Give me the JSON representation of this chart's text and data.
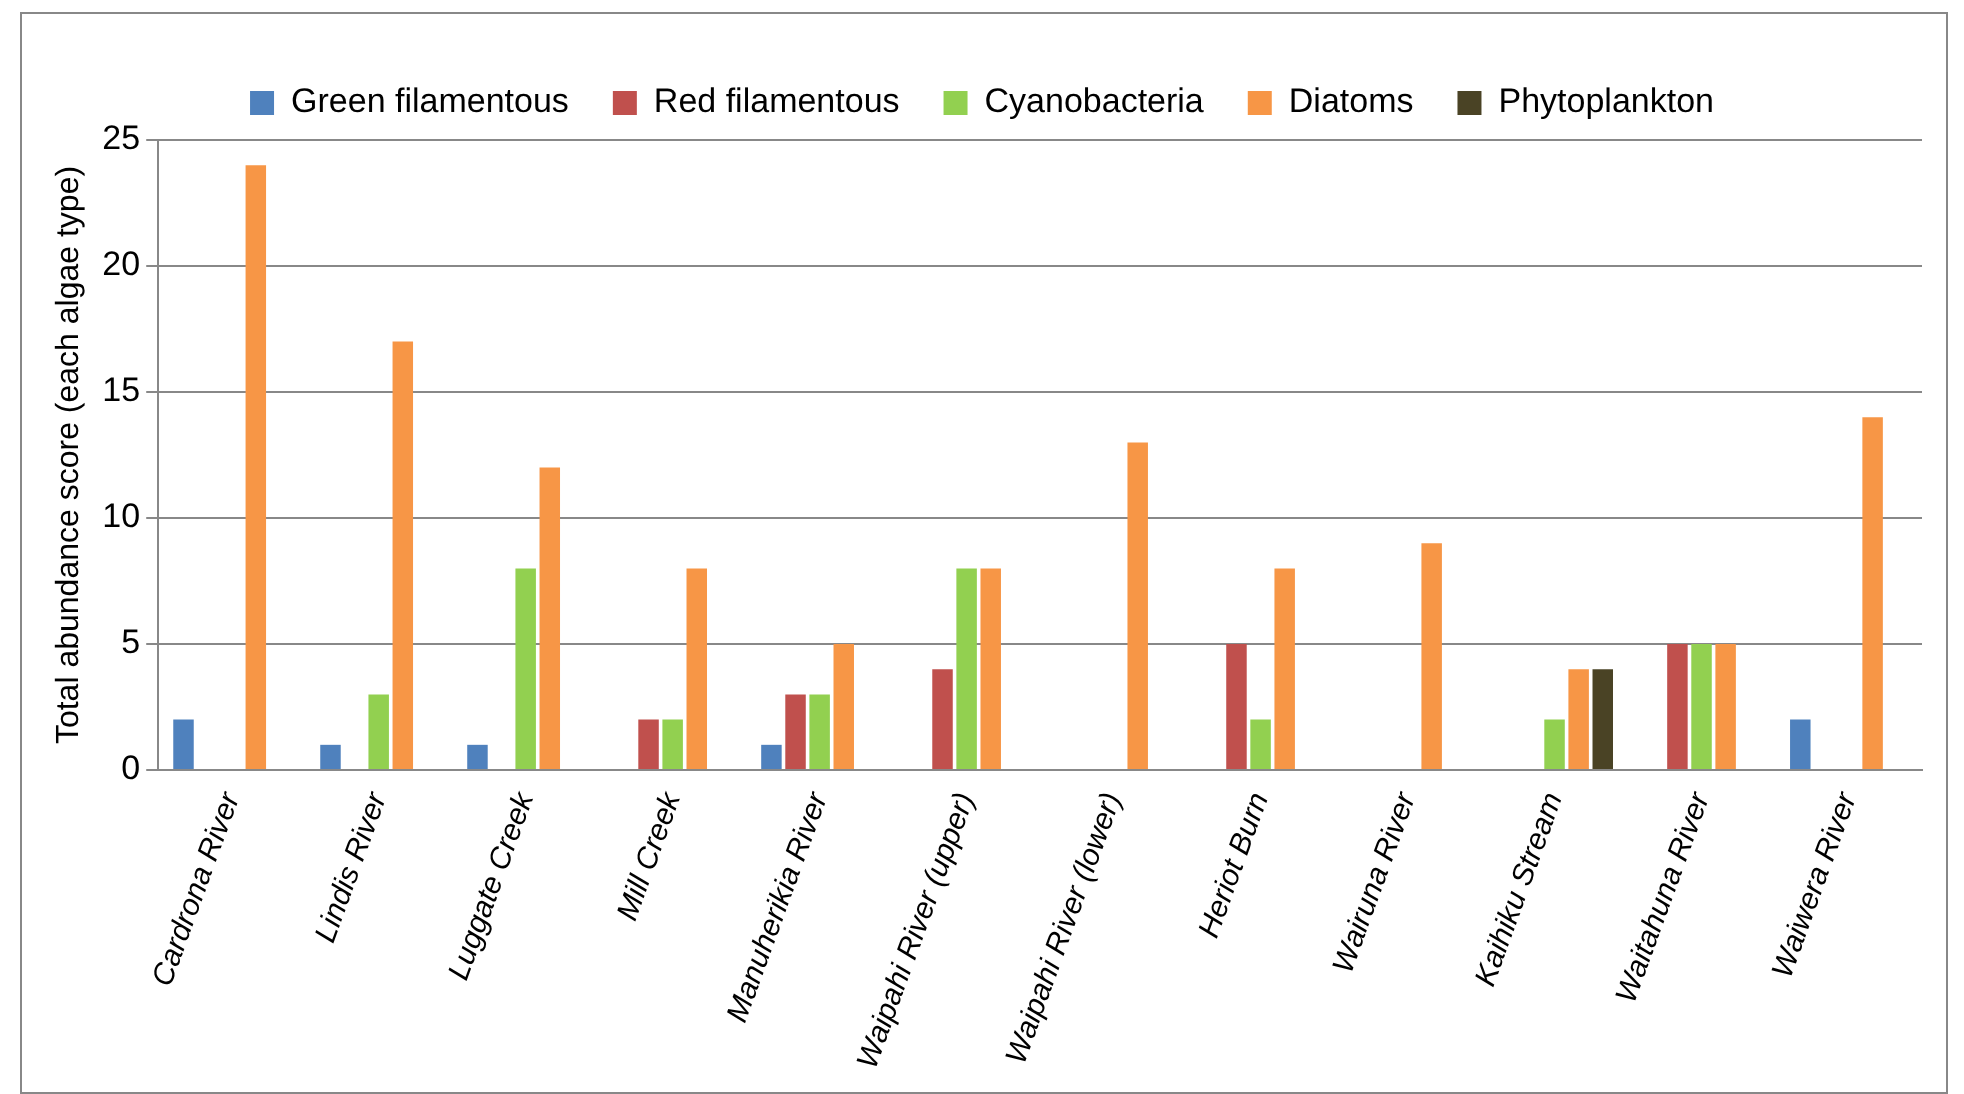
{
  "chart_data": {
    "type": "bar",
    "ylabel": "Total abundance score (each algae type)",
    "categories": [
      "Cardrona River",
      "Lindis River",
      "Luggate Creek",
      "Mill Creek",
      "Manuherikia River",
      "Waipahi River (upper)",
      "Waipahi River (lower)",
      "Heriot Burn",
      "Wairuna River",
      "Kaihiku Stream",
      "Waitahuna River",
      "Waiwera River"
    ],
    "series": [
      {
        "name": "Green filamentous",
        "color": "#4f81bd",
        "values": [
          2,
          1,
          1,
          0,
          1,
          0,
          0,
          0,
          0,
          0,
          0,
          2
        ]
      },
      {
        "name": "Red filamentous",
        "color": "#c0504d",
        "values": [
          0,
          0,
          0,
          2,
          3,
          4,
          0,
          5,
          0,
          0,
          5,
          0
        ]
      },
      {
        "name": "Cyanobacteria",
        "color": "#92d050",
        "values": [
          0,
          3,
          8,
          2,
          3,
          8,
          0,
          2,
          0,
          2,
          5,
          0
        ]
      },
      {
        "name": "Diatoms",
        "color": "#f79646",
        "values": [
          24,
          17,
          12,
          8,
          5,
          8,
          13,
          8,
          9,
          4,
          5,
          14
        ]
      },
      {
        "name": "Phytoplankton",
        "color": "#4a4325",
        "values": [
          0,
          0,
          0,
          0,
          0,
          0,
          0,
          0,
          0,
          4,
          0,
          0
        ]
      }
    ],
    "ylim": [
      0,
      25
    ],
    "yticks": [
      0,
      5,
      10,
      15,
      20,
      25
    ],
    "grid": "y",
    "legend": "top"
  }
}
